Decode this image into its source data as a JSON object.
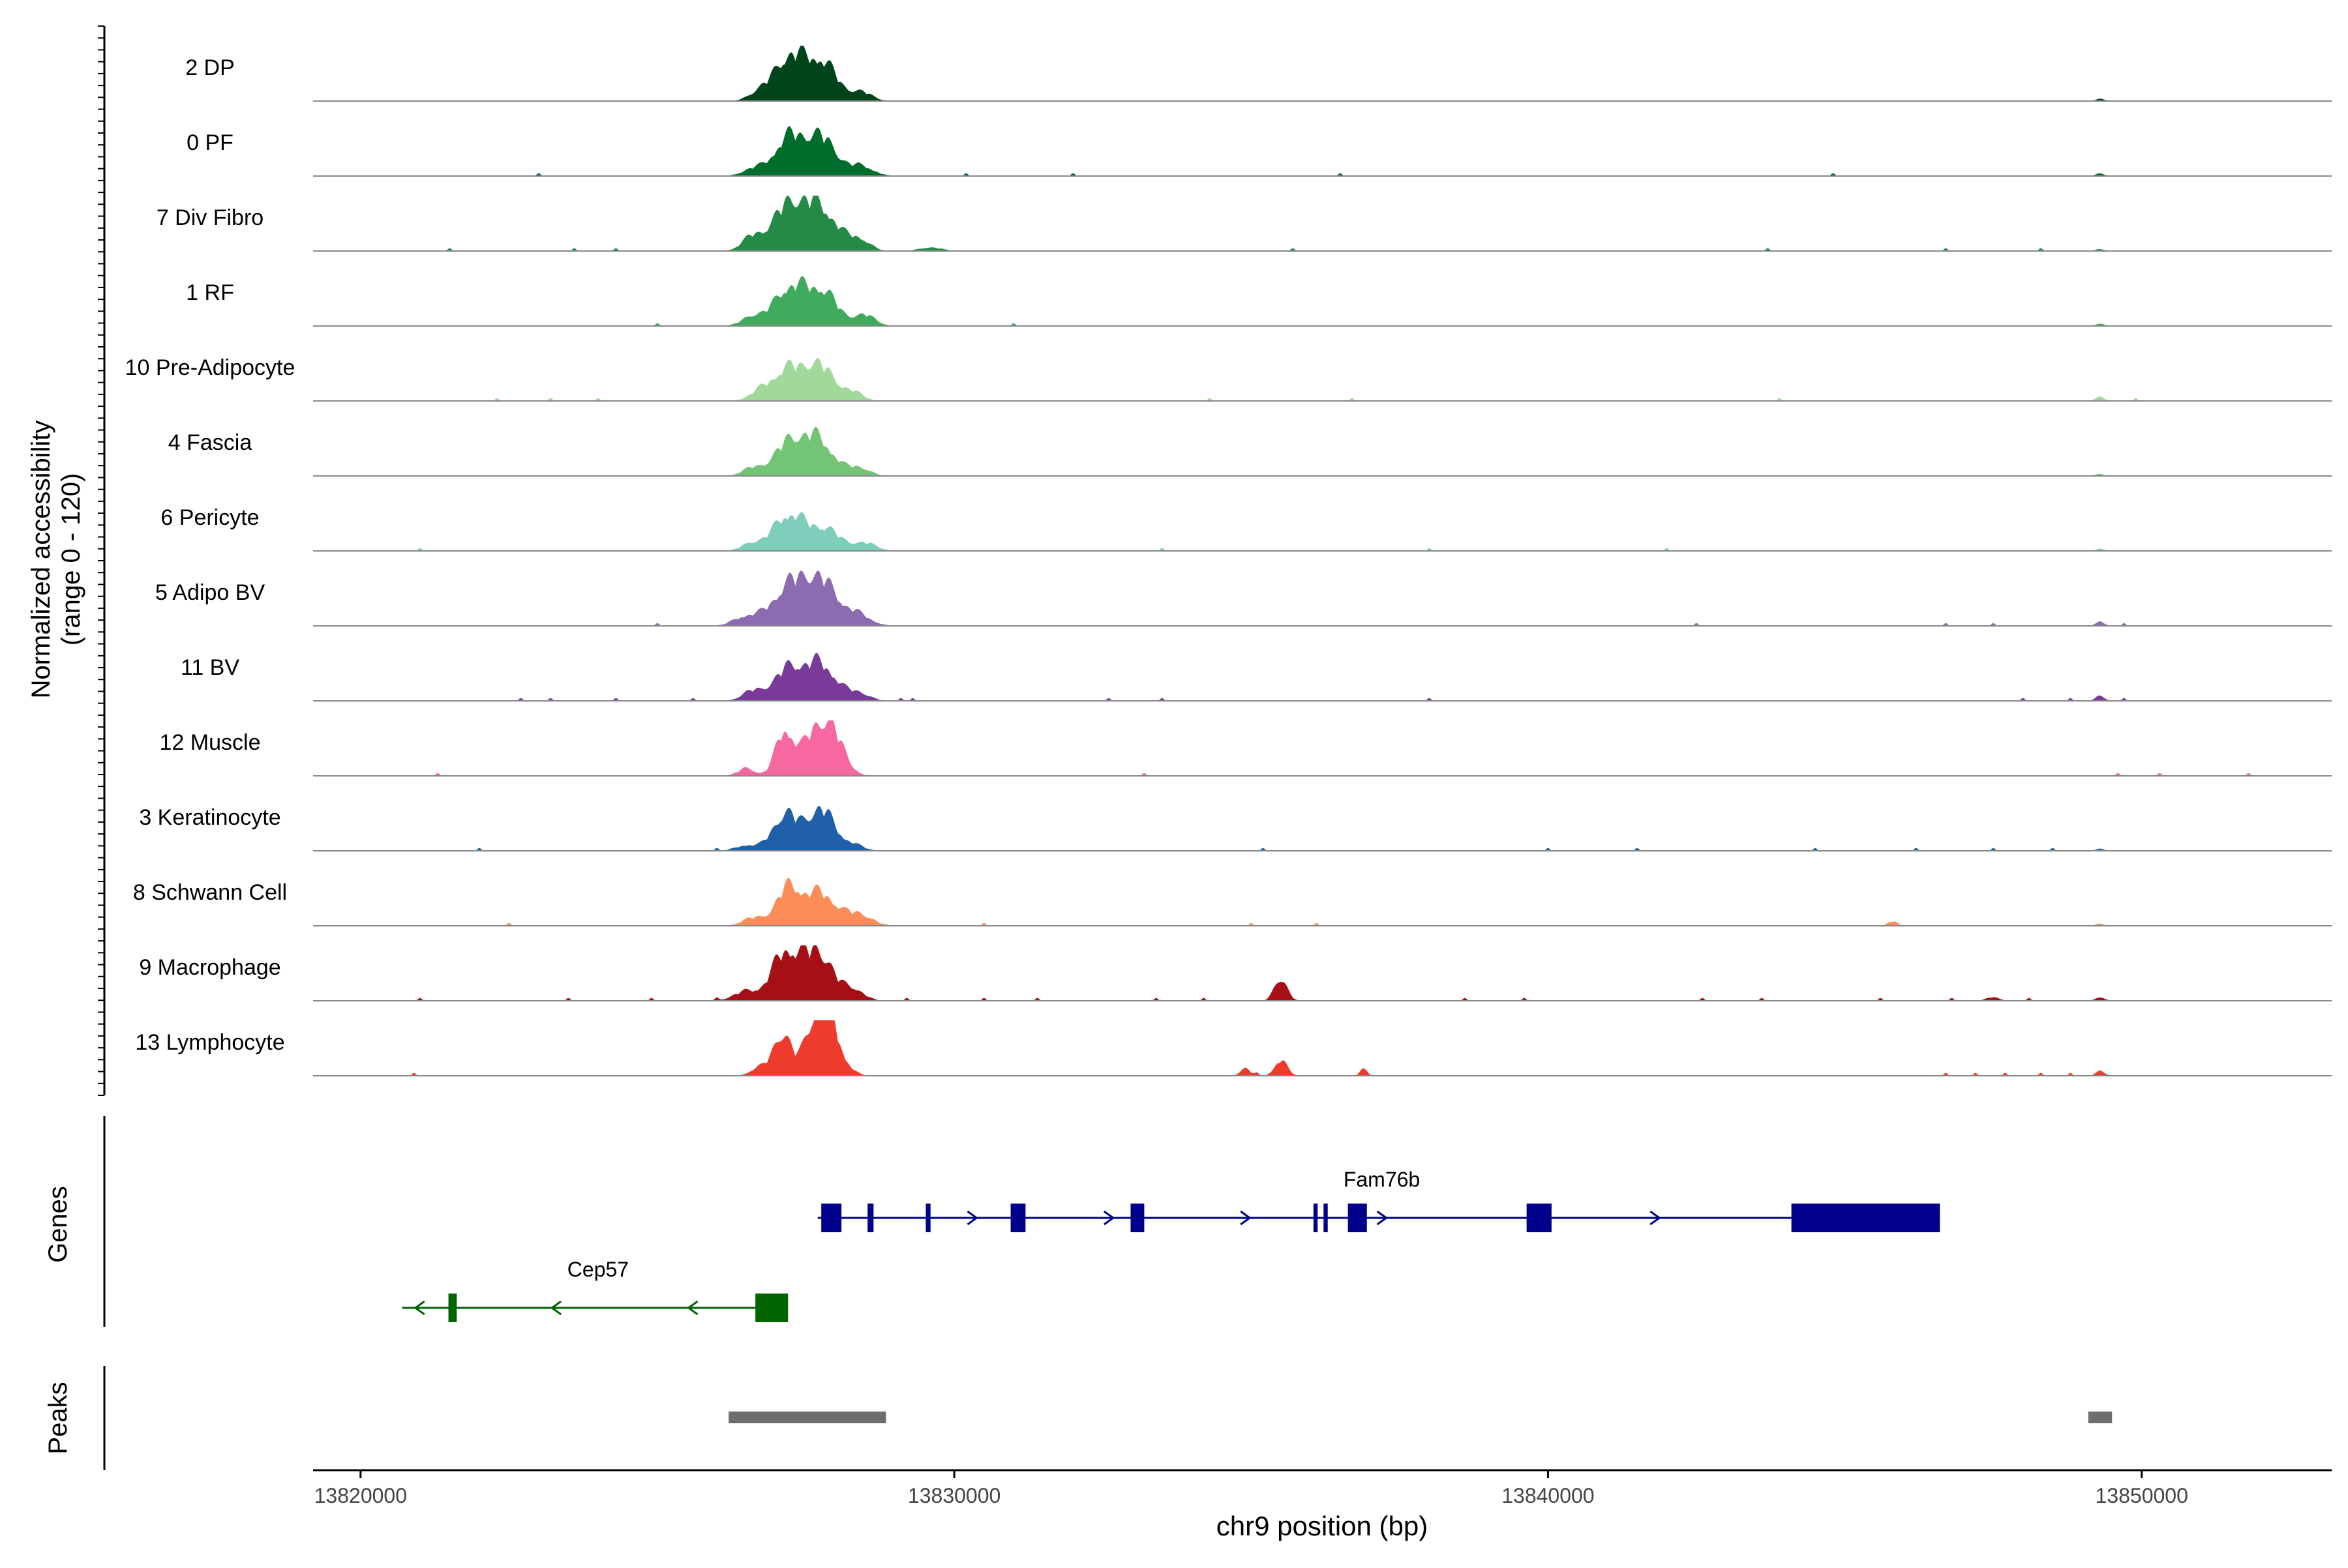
{
  "chart_data": {
    "type": "area",
    "title": "",
    "xlabel": "chr9 position (bp)",
    "ylabel_line1": "Normalized accessibility",
    "ylabel_line2": "(range 0 - 120)",
    "y_range": [
      0,
      120
    ],
    "xlim": [
      13819200,
      13853200
    ],
    "x_ticks": [
      13820000,
      13830000,
      13840000,
      13850000
    ],
    "x_tick_labels": [
      "13820000",
      "13830000",
      "13840000",
      "13850000"
    ],
    "genes_label": "Genes",
    "peaks_label": "Peaks",
    "tracks": [
      {
        "label": "2 DP",
        "color": "#00441b",
        "peaks": [
          [
            13827200,
            110,
            350
          ],
          [
            13827750,
            105,
            380
          ],
          [
            13826700,
            20,
            250
          ],
          [
            13828450,
            22,
            250
          ],
          [
            13849300,
            6,
            110
          ]
        ],
        "noise": []
      },
      {
        "label": "0 PF",
        "color": "#006d2c",
        "peaks": [
          [
            13827200,
            95,
            350
          ],
          [
            13827750,
            100,
            380
          ],
          [
            13826600,
            18,
            250
          ],
          [
            13828450,
            25,
            280
          ],
          [
            13849300,
            6,
            110
          ]
        ],
        "noise": [
          13823000,
          13830200,
          13832000,
          13836500,
          13844800
        ]
      },
      {
        "label": "7 Div Fibro",
        "color": "#238b45",
        "peaks": [
          [
            13827200,
            115,
            380
          ],
          [
            13827750,
            110,
            400
          ],
          [
            13826600,
            35,
            250
          ],
          [
            13828400,
            30,
            250
          ],
          [
            13829600,
            10,
            250
          ],
          [
            13849300,
            5,
            110
          ]
        ],
        "noise": [
          13821500,
          13823600,
          13824300,
          13835700,
          13843700,
          13846700,
          13848300
        ]
      },
      {
        "label": "1 RF",
        "color": "#41ab5d",
        "peaks": [
          [
            13827200,
            95,
            350
          ],
          [
            13827750,
            95,
            380
          ],
          [
            13826600,
            25,
            250
          ],
          [
            13828500,
            28,
            250
          ],
          [
            13849300,
            6,
            110
          ]
        ],
        "noise": [
          13825000,
          13831000
        ]
      },
      {
        "label": "10 Pre-Adipocyte",
        "color": "#a1d99b",
        "peaks": [
          [
            13827150,
            75,
            340
          ],
          [
            13827700,
            95,
            380
          ],
          [
            13826700,
            20,
            250
          ],
          [
            13828300,
            20,
            250
          ],
          [
            13849300,
            10,
            110
          ]
        ],
        "noise": [
          13822300,
          13823200,
          13824000,
          13834300,
          13836700,
          13843900,
          13849900
        ]
      },
      {
        "label": "4 Fascia",
        "color": "#74c476",
        "peaks": [
          [
            13827200,
            80,
            350
          ],
          [
            13827700,
            95,
            380
          ],
          [
            13826600,
            20,
            250
          ],
          [
            13828400,
            22,
            250
          ],
          [
            13849300,
            5,
            110
          ]
        ],
        "noise": []
      },
      {
        "label": "6 Pericyte",
        "color": "#7fcdbb",
        "peaks": [
          [
            13827200,
            95,
            350
          ],
          [
            13827800,
            60,
            380
          ],
          [
            13826600,
            20,
            250
          ],
          [
            13828500,
            20,
            280
          ],
          [
            13849300,
            6,
            110
          ]
        ],
        "noise": [
          13821000,
          13833500,
          13838000,
          13842000
        ]
      },
      {
        "label": "5 Adipo BV",
        "color": "#8c6bb1",
        "peaks": [
          [
            13827200,
            95,
            400
          ],
          [
            13827750,
            115,
            420
          ],
          [
            13826500,
            25,
            300
          ],
          [
            13828400,
            25,
            300
          ],
          [
            13849300,
            10,
            110
          ]
        ],
        "noise": [
          13825000,
          13842500,
          13846700,
          13847500,
          13849700
        ]
      },
      {
        "label": "11 BV",
        "color": "#7a3a9a",
        "peaks": [
          [
            13827200,
            80,
            350
          ],
          [
            13827750,
            95,
            380
          ],
          [
            13826600,
            25,
            250
          ],
          [
            13828400,
            20,
            250
          ],
          [
            13849300,
            13,
            110
          ]
        ],
        "noise": [
          13822700,
          13823200,
          13824300,
          13825600,
          13829100,
          13829300,
          13832600,
          13833500,
          13838000,
          13848000,
          13848800,
          13849700
        ]
      },
      {
        "label": "12 Muscle",
        "color": "#f768a1",
        "peaks": [
          [
            13827150,
            120,
            220
          ],
          [
            13827650,
            110,
            280
          ],
          [
            13827950,
            95,
            250
          ],
          [
            13826500,
            20,
            200
          ],
          [
            13828200,
            15,
            200
          ]
        ],
        "noise": [
          13821300,
          13833200,
          13849600,
          13850300,
          13851800
        ]
      },
      {
        "label": "3 Keratinocyte",
        "color": "#2060a8",
        "peaks": [
          [
            13827150,
            95,
            300
          ],
          [
            13827750,
            110,
            330
          ],
          [
            13826500,
            15,
            250
          ],
          [
            13828300,
            15,
            250
          ],
          [
            13849300,
            5,
            110
          ]
        ],
        "noise": [
          13822000,
          13826000,
          13835200,
          13840000,
          13841500,
          13844500,
          13846200,
          13847500,
          13848500
        ]
      },
      {
        "label": "8 Schwann Cell",
        "color": "#fc8d59",
        "peaks": [
          [
            13827200,
            95,
            300
          ],
          [
            13827750,
            85,
            380
          ],
          [
            13826600,
            20,
            250
          ],
          [
            13828400,
            30,
            300
          ],
          [
            13845800,
            12,
            110
          ],
          [
            13849300,
            5,
            110
          ]
        ],
        "noise": [
          13822500,
          13830500,
          13835000,
          13836100
        ]
      },
      {
        "label": "9 Macrophage",
        "color": "#a50f15",
        "peaks": [
          [
            13827150,
            125,
            320
          ],
          [
            13827700,
            130,
            350
          ],
          [
            13826500,
            25,
            300
          ],
          [
            13828300,
            30,
            250
          ],
          [
            13835500,
            60,
            150
          ],
          [
            13849300,
            10,
            110
          ],
          [
            13847500,
            10,
            150
          ]
        ],
        "noise": [
          13821000,
          13823500,
          13824900,
          13826000,
          13829200,
          13830500,
          13831400,
          13833400,
          13834200,
          13838600,
          13839600,
          13842600,
          13843600,
          13845600,
          13846800,
          13848100
        ]
      },
      {
        "label": "13 Lymphocyte",
        "color": "#ef3b2c",
        "peaks": [
          [
            13827100,
            110,
            220
          ],
          [
            13827650,
            135,
            250
          ],
          [
            13827900,
            130,
            230
          ],
          [
            13826700,
            20,
            200
          ],
          [
            13828200,
            15,
            200
          ],
          [
            13835500,
            40,
            150
          ],
          [
            13834900,
            20,
            120
          ],
          [
            13836900,
            22,
            80
          ],
          [
            13849300,
            12,
            110
          ]
        ],
        "noise": [
          13820900,
          13835100,
          13846700,
          13847200,
          13847700,
          13848300,
          13848800
        ]
      }
    ],
    "genes": [
      {
        "name": "Fam76b",
        "color": "#00008b",
        "strand": "+",
        "start": 13827700,
        "end": 13846600,
        "exons": [
          [
            13827760,
            13828100
          ],
          [
            13828540,
            13828640
          ],
          [
            13829520,
            13829600
          ],
          [
            13830950,
            13831200
          ],
          [
            13832970,
            13833200
          ],
          [
            13836050,
            13836120
          ],
          [
            13836220,
            13836290
          ],
          [
            13836630,
            13836950
          ],
          [
            13839640,
            13840060
          ],
          [
            13844100,
            13846600
          ]
        ]
      },
      {
        "name": "Cep57",
        "color": "#006400",
        "strand": "-",
        "start": 13820700,
        "end": 13827200,
        "exons": [
          [
            13821480,
            13821620
          ],
          [
            13826650,
            13827200
          ]
        ]
      }
    ],
    "peaks": [
      {
        "start": 13826200,
        "end": 13828850
      },
      {
        "start": 13849100,
        "end": 13849500
      }
    ]
  }
}
